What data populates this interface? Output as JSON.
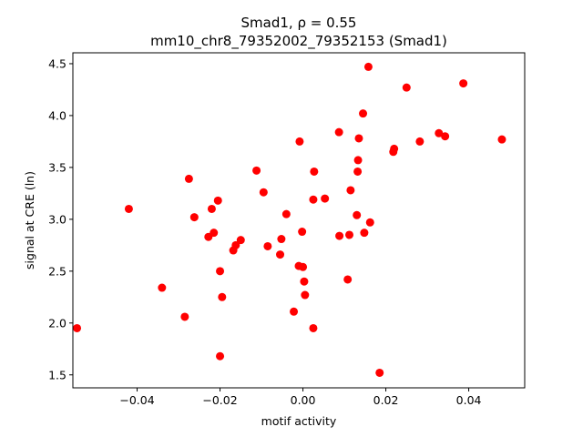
{
  "chart_data": {
    "type": "scatter",
    "title": "Smad1, ρ = 0.55",
    "subtitle": "mm10_chr8_79352002_79352153 (Smad1)",
    "xlabel": "motif activity",
    "ylabel": "signal at CRE (ln)",
    "xlim": [
      -0.0555,
      0.0535
    ],
    "ylim": [
      1.375,
      4.605
    ],
    "xticks": [
      -0.04,
      -0.02,
      0.0,
      0.02,
      0.04
    ],
    "xtick_labels": [
      "−0.04",
      "−0.02",
      "0.00",
      "0.02",
      "0.04"
    ],
    "yticks": [
      1.5,
      2.0,
      2.5,
      3.0,
      3.5,
      4.0,
      4.5
    ],
    "ytick_labels": [
      "1.5",
      "2.0",
      "2.5",
      "3.0",
      "3.5",
      "4.0",
      "4.5"
    ],
    "grid": false,
    "legend": "none",
    "marker_color": "#ff0000",
    "points": [
      {
        "x": -0.0545,
        "y": 1.95
      },
      {
        "x": -0.042,
        "y": 3.1
      },
      {
        "x": -0.034,
        "y": 2.34
      },
      {
        "x": -0.0285,
        "y": 2.06
      },
      {
        "x": -0.0275,
        "y": 3.39
      },
      {
        "x": -0.0262,
        "y": 3.02
      },
      {
        "x": -0.0228,
        "y": 2.83
      },
      {
        "x": -0.022,
        "y": 3.1
      },
      {
        "x": -0.0215,
        "y": 2.87
      },
      {
        "x": -0.0205,
        "y": 3.18
      },
      {
        "x": -0.02,
        "y": 2.5
      },
      {
        "x": -0.02,
        "y": 1.68
      },
      {
        "x": -0.0195,
        "y": 2.25
      },
      {
        "x": -0.0168,
        "y": 2.7
      },
      {
        "x": -0.0162,
        "y": 2.75
      },
      {
        "x": -0.015,
        "y": 2.8
      },
      {
        "x": -0.0112,
        "y": 3.47
      },
      {
        "x": -0.0095,
        "y": 3.26
      },
      {
        "x": -0.0085,
        "y": 2.74
      },
      {
        "x": -0.0055,
        "y": 2.66
      },
      {
        "x": -0.0052,
        "y": 2.81
      },
      {
        "x": -0.004,
        "y": 3.05
      },
      {
        "x": -0.0022,
        "y": 2.11
      },
      {
        "x": -0.001,
        "y": 2.55
      },
      {
        "x": -0.0008,
        "y": 3.75
      },
      {
        "x": -0.0002,
        "y": 2.88
      },
      {
        "x": 0.0,
        "y": 2.54
      },
      {
        "x": 0.0003,
        "y": 2.4
      },
      {
        "x": 0.0005,
        "y": 2.27
      },
      {
        "x": 0.0025,
        "y": 3.19
      },
      {
        "x": 0.0025,
        "y": 1.95
      },
      {
        "x": 0.0027,
        "y": 3.46
      },
      {
        "x": 0.0053,
        "y": 3.2
      },
      {
        "x": 0.0087,
        "y": 3.84
      },
      {
        "x": 0.0088,
        "y": 2.84
      },
      {
        "x": 0.0108,
        "y": 2.42
      },
      {
        "x": 0.0112,
        "y": 2.85
      },
      {
        "x": 0.0115,
        "y": 3.28
      },
      {
        "x": 0.013,
        "y": 3.04
      },
      {
        "x": 0.0132,
        "y": 3.46
      },
      {
        "x": 0.0133,
        "y": 3.57
      },
      {
        "x": 0.0135,
        "y": 3.78
      },
      {
        "x": 0.0145,
        "y": 4.02
      },
      {
        "x": 0.0148,
        "y": 2.87
      },
      {
        "x": 0.0158,
        "y": 4.47
      },
      {
        "x": 0.0162,
        "y": 2.97
      },
      {
        "x": 0.0185,
        "y": 1.52
      },
      {
        "x": 0.0218,
        "y": 3.65
      },
      {
        "x": 0.022,
        "y": 3.68
      },
      {
        "x": 0.025,
        "y": 4.27
      },
      {
        "x": 0.0282,
        "y": 3.75
      },
      {
        "x": 0.0328,
        "y": 3.83
      },
      {
        "x": 0.0343,
        "y": 3.8
      },
      {
        "x": 0.0387,
        "y": 4.31
      },
      {
        "x": 0.048,
        "y": 3.77
      }
    ]
  }
}
